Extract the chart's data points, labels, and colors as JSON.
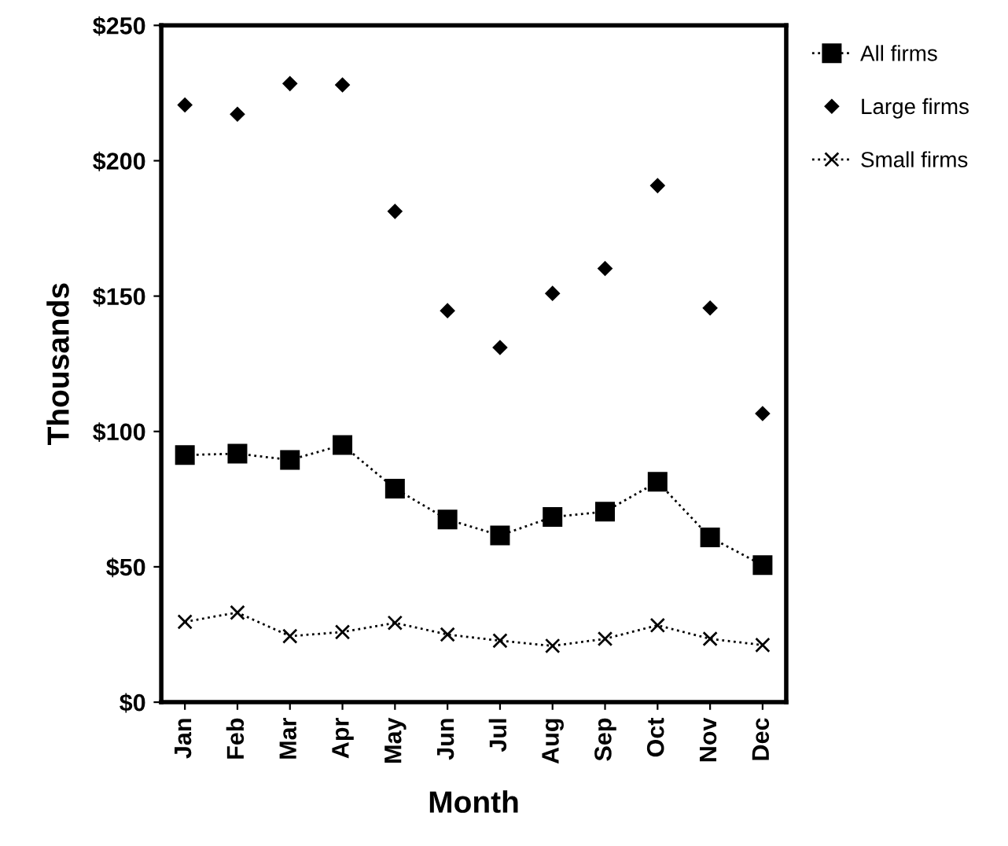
{
  "chart_data": {
    "type": "line",
    "xlabel": "Month",
    "ylabel": "Thousands",
    "categories": [
      "Jan",
      "Feb",
      "Mar",
      "Apr",
      "May",
      "Jun",
      "Jul",
      "Aug",
      "Sep",
      "Oct",
      "Nov",
      "Dec"
    ],
    "series": [
      {
        "name": "All firms",
        "color": "#000000",
        "marker": "square",
        "line_style": "dotted",
        "values": [
          91.3,
          91.8,
          89.5,
          95,
          78.9,
          67.5,
          61.6,
          68.4,
          70.4,
          81.4,
          60.9,
          50.6
        ]
      },
      {
        "name": "Large firms",
        "type": "scatter",
        "color": "#000000",
        "marker": "diamond",
        "values": [
          220.6,
          217.2,
          228.5,
          228,
          181.3,
          144.6,
          131,
          151,
          160.2,
          190.8,
          145.6,
          106.6
        ]
      },
      {
        "name": "Small firms",
        "color": "#000000",
        "marker": "cross",
        "line_style": "dotted",
        "values": [
          29.7,
          33.1,
          24.4,
          25.9,
          29.3,
          25,
          22.7,
          20.8,
          23.4,
          28.4,
          23.4,
          21.1
        ]
      }
    ],
    "ylim": [
      0,
      250
    ],
    "yticks": [
      {
        "value": 0,
        "label": "$0"
      },
      {
        "value": 50,
        "label": "$50"
      },
      {
        "value": 100,
        "label": "$100"
      },
      {
        "value": 150,
        "label": "$150"
      },
      {
        "value": 200,
        "label": "$200"
      },
      {
        "value": 250,
        "label": "$250"
      }
    ],
    "grid": false,
    "legend": "right"
  }
}
